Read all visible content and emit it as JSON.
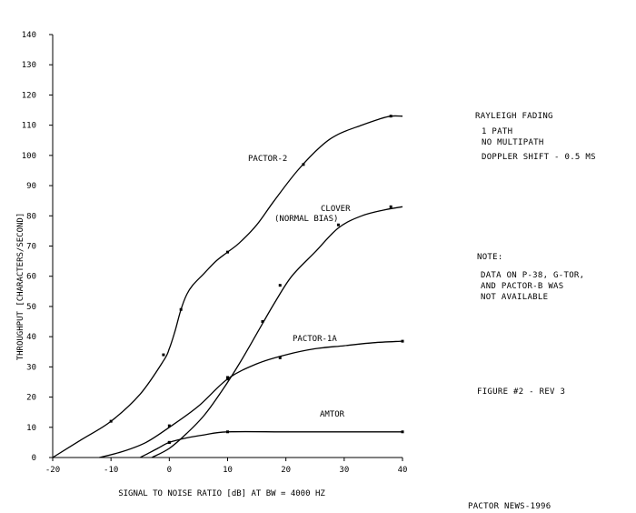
{
  "chart_data": {
    "type": "line",
    "xlabel": "SIGNAL TO NOISE RATIO [dB] AT BW = 4000 HZ",
    "ylabel": "THROUGHPUT  [CHARACTERS/SECOND]",
    "xlim": [
      -20,
      40
    ],
    "ylim": [
      0,
      140
    ],
    "x_ticks": [
      -20,
      -10,
      0,
      10,
      20,
      30,
      40
    ],
    "y_ticks": [
      0,
      10,
      20,
      30,
      40,
      50,
      60,
      70,
      80,
      90,
      100,
      110,
      120,
      130,
      140
    ],
    "grid": false,
    "series": [
      {
        "name": "PACTOR-2",
        "points": [
          [
            -20,
            0
          ],
          [
            -15,
            6
          ],
          [
            -10,
            12
          ],
          [
            -5,
            21
          ],
          [
            -1,
            32
          ],
          [
            0,
            36
          ],
          [
            1,
            42
          ],
          [
            2,
            49
          ],
          [
            3,
            54
          ],
          [
            4,
            57
          ],
          [
            6,
            61
          ],
          [
            8,
            65
          ],
          [
            10,
            68
          ],
          [
            12,
            71
          ],
          [
            15,
            77
          ],
          [
            18,
            85
          ],
          [
            22,
            95
          ],
          [
            26,
            103
          ],
          [
            29,
            107
          ],
          [
            33,
            110
          ],
          [
            36,
            112
          ],
          [
            38,
            113
          ],
          [
            40,
            113
          ]
        ],
        "markers": [
          [
            -10,
            12
          ],
          [
            -1,
            34
          ],
          [
            2,
            49
          ],
          [
            10,
            68
          ],
          [
            23,
            97
          ],
          [
            38,
            113
          ]
        ]
      },
      {
        "name": "CLOVER",
        "points": [
          [
            -3,
            0
          ],
          [
            0,
            3
          ],
          [
            3,
            8
          ],
          [
            6,
            14
          ],
          [
            9,
            22
          ],
          [
            12,
            31
          ],
          [
            15,
            41
          ],
          [
            18,
            51
          ],
          [
            21,
            60
          ],
          [
            25,
            68
          ],
          [
            29,
            76
          ],
          [
            33,
            80
          ],
          [
            37,
            82
          ],
          [
            40,
            83
          ]
        ],
        "markers": [
          [
            0,
            5
          ],
          [
            10,
            26
          ],
          [
            16,
            45
          ],
          [
            19,
            57
          ],
          [
            29,
            77
          ],
          [
            38,
            83
          ]
        ]
      },
      {
        "name": "PACTOR-1A",
        "points": [
          [
            -12,
            0
          ],
          [
            -8,
            2
          ],
          [
            -4,
            5
          ],
          [
            0,
            10
          ],
          [
            5,
            17
          ],
          [
            10,
            26
          ],
          [
            15,
            31
          ],
          [
            20,
            34
          ],
          [
            25,
            36
          ],
          [
            30,
            37
          ],
          [
            35,
            38
          ],
          [
            40,
            38.5
          ]
        ],
        "markers": [
          [
            0,
            10.5
          ],
          [
            10,
            26.5
          ],
          [
            19,
            33
          ],
          [
            40,
            38.5
          ]
        ]
      },
      {
        "name": "AMTOR",
        "points": [
          [
            -5,
            0
          ],
          [
            -4,
            1
          ],
          [
            -2,
            3
          ],
          [
            0,
            5
          ],
          [
            3,
            6.5
          ],
          [
            6,
            7.5
          ],
          [
            10,
            8.5
          ],
          [
            20,
            8.5
          ],
          [
            30,
            8.5
          ],
          [
            40,
            8.5
          ]
        ],
        "markers": [
          [
            0,
            5
          ],
          [
            10,
            8.5
          ],
          [
            40,
            8.5
          ]
        ]
      }
    ],
    "annotations": {
      "pactor2": "PACTOR-2",
      "clover": "CLOVER",
      "clover_bias": "(NORMAL BIAS)",
      "pactor1a": "PACTOR-1A",
      "amtor": "AMTOR"
    }
  },
  "notes": {
    "fading_title": "RAYLEIGH FADING",
    "fading_lines": [
      "1 PATH",
      "NO MULTIPATH",
      "DOPPLER SHIFT - 0.5 MS"
    ],
    "note_title": "NOTE:",
    "note_lines": [
      "DATA ON P-38, G-TOR,",
      "AND PACTOR-B  WAS",
      "NOT AVAILABLE"
    ],
    "figure": "FIGURE #2 - REV 3",
    "source": "PACTOR NEWS-1996"
  }
}
